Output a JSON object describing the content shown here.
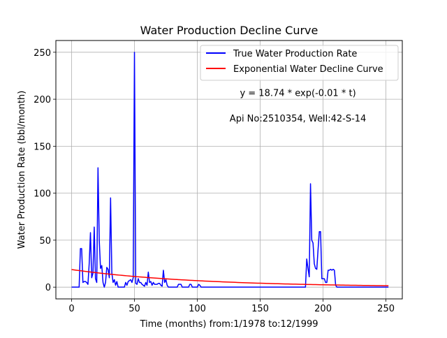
{
  "chart_data": {
    "type": "line",
    "title": "Water Production Decline Curve",
    "xlabel": "Time (months) from:1/1978 to:12/1999",
    "ylabel": "Water Production Rate (bbl/month)",
    "xlim": [
      -12.5,
      263
    ],
    "ylim": [
      -12.5,
      262.5
    ],
    "x_ticks": [
      0,
      50,
      100,
      150,
      200,
      250
    ],
    "y_ticks": [
      0,
      50,
      100,
      150,
      200,
      250
    ],
    "grid": true,
    "legend_placement": "top-right",
    "annotations": [
      {
        "text": "y = 18.74 * exp(-0.01 * t)",
        "x": 180,
        "y": 207
      },
      {
        "text": "Api No:2510354, Well:42-S-14",
        "x": 180,
        "y": 180
      }
    ],
    "series": [
      {
        "name": "True Water Production Rate",
        "color": "#0000ff",
        "points": [
          [
            0,
            0
          ],
          [
            6,
            0
          ],
          [
            7,
            41
          ],
          [
            8,
            41
          ],
          [
            9,
            5
          ],
          [
            10,
            6
          ],
          [
            11,
            6
          ],
          [
            12,
            5
          ],
          [
            13,
            3
          ],
          [
            14,
            25
          ],
          [
            15,
            58
          ],
          [
            16,
            10
          ],
          [
            17,
            15
          ],
          [
            18,
            64
          ],
          [
            19,
            9
          ],
          [
            20,
            5
          ],
          [
            21,
            127
          ],
          [
            22,
            50
          ],
          [
            23,
            20
          ],
          [
            24,
            23
          ],
          [
            25,
            5
          ],
          [
            26,
            0
          ],
          [
            27,
            5
          ],
          [
            28,
            21
          ],
          [
            29,
            19
          ],
          [
            30,
            10
          ],
          [
            31,
            95
          ],
          [
            32,
            15
          ],
          [
            33,
            5
          ],
          [
            34,
            8
          ],
          [
            35,
            2
          ],
          [
            36,
            6
          ],
          [
            37,
            0
          ],
          [
            38,
            0
          ],
          [
            40,
            0
          ],
          [
            42,
            0
          ],
          [
            43,
            5
          ],
          [
            44,
            2
          ],
          [
            45,
            6
          ],
          [
            46,
            7
          ],
          [
            47,
            8
          ],
          [
            48,
            5
          ],
          [
            49,
            10
          ],
          [
            50,
            250
          ],
          [
            51,
            4
          ],
          [
            52,
            3
          ],
          [
            53,
            9
          ],
          [
            54,
            5
          ],
          [
            55,
            5
          ],
          [
            56,
            3
          ],
          [
            57,
            2
          ],
          [
            58,
            1
          ],
          [
            59,
            5
          ],
          [
            60,
            2
          ],
          [
            61,
            16
          ],
          [
            62,
            5
          ],
          [
            63,
            6
          ],
          [
            64,
            2
          ],
          [
            65,
            5
          ],
          [
            66,
            3
          ],
          [
            67,
            3
          ],
          [
            68,
            3
          ],
          [
            69,
            4
          ],
          [
            70,
            4
          ],
          [
            71,
            2
          ],
          [
            72,
            1
          ],
          [
            73,
            18
          ],
          [
            74,
            5
          ],
          [
            75,
            8
          ],
          [
            76,
            2
          ],
          [
            77,
            0
          ],
          [
            84,
            0
          ],
          [
            85,
            3
          ],
          [
            86,
            3
          ],
          [
            87,
            3
          ],
          [
            88,
            0
          ],
          [
            93,
            0
          ],
          [
            94,
            3
          ],
          [
            95,
            3
          ],
          [
            96,
            0
          ],
          [
            100,
            0
          ],
          [
            101,
            3
          ],
          [
            102,
            2
          ],
          [
            103,
            0
          ],
          [
            186,
            0
          ],
          [
            187,
            30
          ],
          [
            188,
            20
          ],
          [
            189,
            11
          ],
          [
            190,
            110
          ],
          [
            191,
            50
          ],
          [
            192,
            47
          ],
          [
            193,
            25
          ],
          [
            194,
            20
          ],
          [
            195,
            19
          ],
          [
            196,
            40
          ],
          [
            197,
            59
          ],
          [
            198,
            59
          ],
          [
            199,
            9
          ],
          [
            200,
            9
          ],
          [
            201,
            9
          ],
          [
            202,
            5
          ],
          [
            203,
            5
          ],
          [
            204,
            18
          ],
          [
            205,
            18
          ],
          [
            206,
            19
          ],
          [
            207,
            18
          ],
          [
            208,
            19
          ],
          [
            209,
            18
          ],
          [
            210,
            2
          ],
          [
            211,
            0
          ],
          [
            252,
            0
          ]
        ]
      },
      {
        "name": "Exponential Water Decline Curve",
        "color": "#ff0000",
        "equation": {
          "a": 18.74,
          "b": 0.01
        },
        "x_range": [
          0,
          252
        ]
      }
    ]
  }
}
